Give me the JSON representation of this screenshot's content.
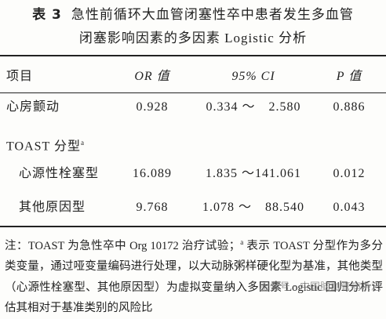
{
  "table_label": "表 3",
  "title_lines": [
    "急性前循环大血管闭塞性卒中患者发生多血管",
    "闭塞影响因素的多因素 Logistic 分析"
  ],
  "table": {
    "header": [
      "项目",
      "OR 值",
      "95% CI",
      "P 值"
    ],
    "rows": [
      {
        "item": "心房颤动",
        "or": "0.928",
        "ci": "0.334 ～　2.580",
        "p": "0.886"
      },
      {
        "item": "TOAST 分型",
        "sup": "a"
      },
      {
        "item": "心源性栓塞型",
        "or": "16.089",
        "ci": "1.835 ～141.061",
        "p": "0.012"
      },
      {
        "item": "其他原因型",
        "or": "9.768",
        "ci": "1.078 ～　88.540",
        "p": "0.043"
      }
    ]
  },
  "note": {
    "before": "注：TOAST 为急性卒中 Org 10172 治疗试验；",
    "sup": "a",
    "after": " 表示 TOAST 分型作为多分类变量，通过哑变量编码进行处理，以大动脉粥样硬化型为基准，其他类型（心源性栓塞型、其他原因型）为虚拟变量纳入多因素 Logistic 回归分析评估其相对于基准类别的风险比"
  },
  "watermark": "服务号 · 中国脑血管病杂志"
}
